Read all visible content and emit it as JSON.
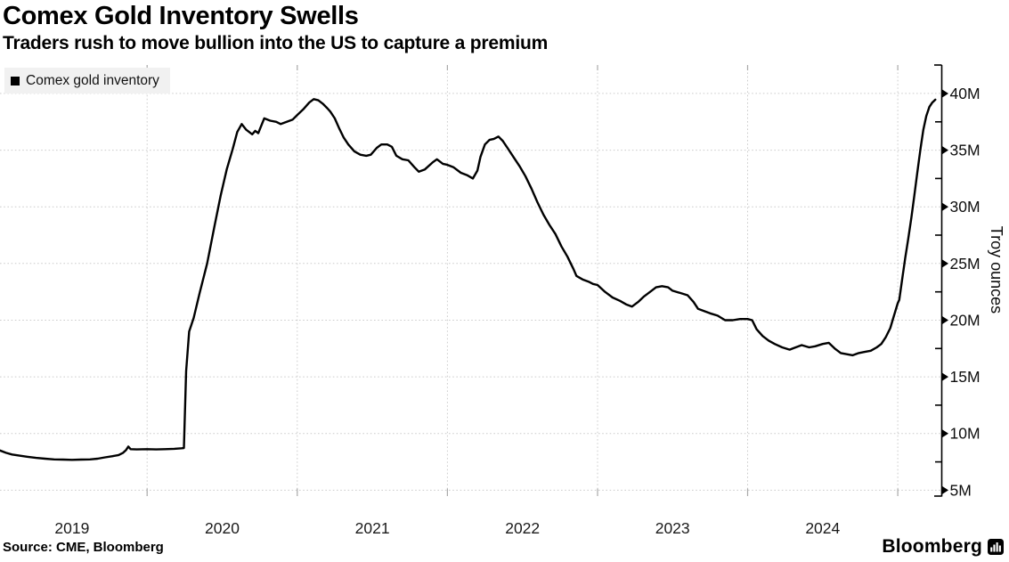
{
  "header": {
    "title": "Comex Gold Inventory Swells",
    "subtitle": "Traders rush to move bullion into the US to capture a premium"
  },
  "legend": {
    "items": [
      {
        "label": "Comex gold inventory",
        "marker_color": "#000000",
        "marker_icon": "square-swatch-icon"
      }
    ]
  },
  "footer": {
    "source": "Source: CME, Bloomberg",
    "brand": "Bloomberg",
    "brand_icon": "bloomberg-terminal-icon"
  },
  "colors": {
    "background": "#ffffff",
    "text": "#000000",
    "line": "#000000",
    "grid": "#cccccc",
    "year_stub": "#aaaaaa",
    "legend_bg": "#f1f1f1"
  },
  "chart_data": {
    "type": "line",
    "title": "Comex Gold Inventory Swells",
    "subtitle": "Traders rush to move bullion into the US to capture a premium",
    "xlabel": "",
    "ylabel": "Troy ounces",
    "unit_suffix": "M",
    "grid": true,
    "legend_position": "top-left",
    "x_range": [
      2019.02,
      2025.29
    ],
    "ylim": [
      4.48,
      42.51
    ],
    "y_major_ticks": [
      5,
      10,
      15,
      20,
      25,
      30,
      35,
      40
    ],
    "y_minor_ticks": [
      7.5,
      12.5,
      17.5,
      22.5,
      27.5,
      32.5,
      37.5
    ],
    "x_grid_years": [
      2020,
      2021,
      2022,
      2023,
      2024,
      2025
    ],
    "x_year_labels": [
      "2019",
      "2020",
      "2021",
      "2022",
      "2023",
      "2024"
    ],
    "series": [
      {
        "name": "Comex gold inventory",
        "color": "#000000",
        "points": [
          [
            2019.02,
            8.5
          ],
          [
            2019.06,
            8.3
          ],
          [
            2019.1,
            8.15
          ],
          [
            2019.15,
            8.05
          ],
          [
            2019.2,
            7.95
          ],
          [
            2019.26,
            7.85
          ],
          [
            2019.32,
            7.78
          ],
          [
            2019.38,
            7.72
          ],
          [
            2019.44,
            7.7
          ],
          [
            2019.5,
            7.68
          ],
          [
            2019.56,
            7.7
          ],
          [
            2019.62,
            7.72
          ],
          [
            2019.67,
            7.78
          ],
          [
            2019.72,
            7.9
          ],
          [
            2019.77,
            8.0
          ],
          [
            2019.81,
            8.1
          ],
          [
            2019.84,
            8.3
          ],
          [
            2019.86,
            8.55
          ],
          [
            2019.875,
            8.85
          ],
          [
            2019.89,
            8.62
          ],
          [
            2019.93,
            8.6
          ],
          [
            2020.0,
            8.62
          ],
          [
            2020.06,
            8.6
          ],
          [
            2020.12,
            8.62
          ],
          [
            2020.18,
            8.65
          ],
          [
            2020.23,
            8.7
          ],
          [
            2020.245,
            8.72
          ],
          [
            2020.26,
            15.5
          ],
          [
            2020.28,
            19.0
          ],
          [
            2020.31,
            20.2
          ],
          [
            2020.35,
            22.4
          ],
          [
            2020.4,
            25.0
          ],
          [
            2020.45,
            28.4
          ],
          [
            2020.49,
            31.0
          ],
          [
            2020.53,
            33.3
          ],
          [
            2020.57,
            35.1
          ],
          [
            2020.6,
            36.6
          ],
          [
            2020.63,
            37.3
          ],
          [
            2020.66,
            36.8
          ],
          [
            2020.7,
            36.4
          ],
          [
            2020.72,
            36.7
          ],
          [
            2020.74,
            36.5
          ],
          [
            2020.78,
            37.8
          ],
          [
            2020.82,
            37.6
          ],
          [
            2020.86,
            37.5
          ],
          [
            2020.89,
            37.3
          ],
          [
            2020.93,
            37.5
          ],
          [
            2020.97,
            37.7
          ],
          [
            2021.0,
            38.1
          ],
          [
            2021.04,
            38.6
          ],
          [
            2021.08,
            39.2
          ],
          [
            2021.11,
            39.5
          ],
          [
            2021.14,
            39.4
          ],
          [
            2021.17,
            39.1
          ],
          [
            2021.2,
            38.7
          ],
          [
            2021.22,
            38.4
          ],
          [
            2021.25,
            37.8
          ],
          [
            2021.28,
            36.9
          ],
          [
            2021.31,
            36.1
          ],
          [
            2021.34,
            35.5
          ],
          [
            2021.38,
            34.9
          ],
          [
            2021.42,
            34.6
          ],
          [
            2021.46,
            34.5
          ],
          [
            2021.49,
            34.6
          ],
          [
            2021.53,
            35.2
          ],
          [
            2021.56,
            35.5
          ],
          [
            2021.6,
            35.5
          ],
          [
            2021.63,
            35.3
          ],
          [
            2021.66,
            34.5
          ],
          [
            2021.7,
            34.2
          ],
          [
            2021.74,
            34.1
          ],
          [
            2021.78,
            33.5
          ],
          [
            2021.81,
            33.1
          ],
          [
            2021.85,
            33.3
          ],
          [
            2021.9,
            33.9
          ],
          [
            2021.93,
            34.2
          ],
          [
            2021.97,
            33.8
          ],
          [
            2022.0,
            33.7
          ],
          [
            2022.04,
            33.5
          ],
          [
            2022.09,
            33.0
          ],
          [
            2022.13,
            32.8
          ],
          [
            2022.17,
            32.5
          ],
          [
            2022.2,
            33.2
          ],
          [
            2022.22,
            34.4
          ],
          [
            2022.25,
            35.5
          ],
          [
            2022.28,
            35.9
          ],
          [
            2022.31,
            36.0
          ],
          [
            2022.34,
            36.2
          ],
          [
            2022.37,
            35.8
          ],
          [
            2022.4,
            35.2
          ],
          [
            2022.44,
            34.4
          ],
          [
            2022.48,
            33.6
          ],
          [
            2022.52,
            32.7
          ],
          [
            2022.56,
            31.6
          ],
          [
            2022.6,
            30.4
          ],
          [
            2022.64,
            29.3
          ],
          [
            2022.68,
            28.4
          ],
          [
            2022.72,
            27.6
          ],
          [
            2022.76,
            26.5
          ],
          [
            2022.8,
            25.6
          ],
          [
            2022.84,
            24.5
          ],
          [
            2022.86,
            23.9
          ],
          [
            2022.9,
            23.6
          ],
          [
            2022.94,
            23.4
          ],
          [
            2022.97,
            23.2
          ],
          [
            2023.0,
            23.1
          ],
          [
            2023.05,
            22.5
          ],
          [
            2023.1,
            22.0
          ],
          [
            2023.15,
            21.7
          ],
          [
            2023.19,
            21.4
          ],
          [
            2023.23,
            21.2
          ],
          [
            2023.27,
            21.6
          ],
          [
            2023.31,
            22.1
          ],
          [
            2023.35,
            22.5
          ],
          [
            2023.39,
            22.9
          ],
          [
            2023.43,
            23.0
          ],
          [
            2023.47,
            22.9
          ],
          [
            2023.5,
            22.6
          ],
          [
            2023.55,
            22.4
          ],
          [
            2023.6,
            22.2
          ],
          [
            2023.64,
            21.6
          ],
          [
            2023.67,
            21.0
          ],
          [
            2023.71,
            20.8
          ],
          [
            2023.75,
            20.6
          ],
          [
            2023.8,
            20.4
          ],
          [
            2023.85,
            20.0
          ],
          [
            2023.9,
            20.0
          ],
          [
            2023.95,
            20.1
          ],
          [
            2024.0,
            20.1
          ],
          [
            2024.03,
            20.0
          ],
          [
            2024.06,
            19.2
          ],
          [
            2024.1,
            18.6
          ],
          [
            2024.14,
            18.2
          ],
          [
            2024.18,
            17.9
          ],
          [
            2024.23,
            17.6
          ],
          [
            2024.28,
            17.4
          ],
          [
            2024.32,
            17.6
          ],
          [
            2024.36,
            17.8
          ],
          [
            2024.41,
            17.6
          ],
          [
            2024.45,
            17.7
          ],
          [
            2024.5,
            17.9
          ],
          [
            2024.54,
            18.0
          ],
          [
            2024.58,
            17.5
          ],
          [
            2024.62,
            17.1
          ],
          [
            2024.66,
            17.0
          ],
          [
            2024.7,
            16.9
          ],
          [
            2024.74,
            17.1
          ],
          [
            2024.78,
            17.2
          ],
          [
            2024.82,
            17.3
          ],
          [
            2024.86,
            17.6
          ],
          [
            2024.89,
            17.9
          ],
          [
            2024.92,
            18.5
          ],
          [
            2024.95,
            19.3
          ],
          [
            2024.97,
            20.2
          ],
          [
            2025.0,
            21.5
          ],
          [
            2025.01,
            21.8
          ],
          [
            2025.03,
            23.7
          ],
          [
            2025.05,
            25.5
          ],
          [
            2025.07,
            27.2
          ],
          [
            2025.09,
            29.0
          ],
          [
            2025.11,
            31.0
          ],
          [
            2025.13,
            33.0
          ],
          [
            2025.15,
            35.0
          ],
          [
            2025.17,
            36.8
          ],
          [
            2025.19,
            38.0
          ],
          [
            2025.21,
            38.8
          ],
          [
            2025.23,
            39.2
          ],
          [
            2025.25,
            39.45
          ]
        ]
      }
    ]
  }
}
